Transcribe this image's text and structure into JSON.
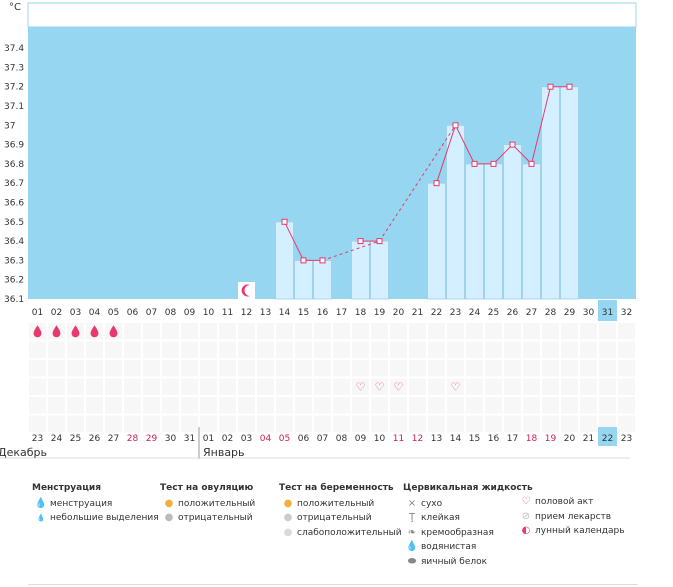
{
  "chart_data": {
    "type": "bar",
    "unit": "°C",
    "ylim": [
      36.1,
      37.5
    ],
    "y_ticks": [
      "37.4",
      "37.3",
      "37.2",
      "37.1",
      "37",
      "36.9",
      "36.8",
      "36.7",
      "36.6",
      "36.5",
      "36.4",
      "36.3",
      "36.2",
      "36.1"
    ],
    "day_labels": [
      "01",
      "02",
      "03",
      "04",
      "05",
      "06",
      "07",
      "08",
      "09",
      "10",
      "11",
      "12",
      "13",
      "14",
      "15",
      "16",
      "17",
      "18",
      "19",
      "20",
      "21",
      "22",
      "23",
      "24",
      "25",
      "26",
      "27",
      "28",
      "29",
      "30",
      "31",
      "32"
    ],
    "highlight_day": "31",
    "temperatures": [
      null,
      null,
      null,
      null,
      null,
      null,
      null,
      null,
      null,
      null,
      null,
      null,
      null,
      36.5,
      36.3,
      36.3,
      null,
      36.4,
      36.4,
      null,
      null,
      36.7,
      37.0,
      36.8,
      36.8,
      36.9,
      36.8,
      37.2,
      37.2,
      null,
      null,
      null
    ],
    "interpolated_segments": [
      [
        16,
        17
      ],
      [
        19,
        21
      ]
    ],
    "calendar_dates": [
      "23",
      "24",
      "25",
      "26",
      "27",
      "28",
      "29",
      "30",
      "31",
      "01",
      "02",
      "03",
      "04",
      "05",
      "06",
      "07",
      "08",
      "09",
      "10",
      "11",
      "12",
      "13",
      "14",
      "15",
      "16",
      "17",
      "18",
      "19",
      "20",
      "21",
      "22",
      "23"
    ],
    "weekend_dates": [
      5,
      6,
      12,
      13,
      19,
      20,
      26,
      27
    ],
    "today_index": 30,
    "month_dividers": [
      9
    ],
    "months": [
      "Декабрь",
      "Январь"
    ],
    "menstruation_days": [
      0,
      1,
      2,
      3,
      4
    ],
    "intercourse_days": [
      17,
      18,
      19,
      22
    ],
    "lunar_day": 11,
    "colors": {
      "plot_bg": "#96d6f0",
      "bar_fill": "#d4efff",
      "bar_stroke": "#9ccfe8",
      "line": "#e63a6e",
      "today": "#96d6f0",
      "weekend": "#cc1f4d",
      "grid": "#ececec"
    }
  },
  "legend": {
    "menstruation": {
      "title": "Менструация",
      "items": [
        "менструация",
        "небольшие выделения"
      ]
    },
    "ovulation": {
      "title": "Тест на овуляцию",
      "items": [
        "положительный",
        "отрицательный"
      ]
    },
    "pregnancy": {
      "title": "Тест на беременность",
      "items": [
        "положительный",
        "отрицательный",
        "слабоположительный"
      ]
    },
    "cervical": {
      "title": "Цервикальная жидкость",
      "items": [
        "сухо",
        "клейкая",
        "кремообразная",
        "водянистая",
        "яичный белок"
      ]
    },
    "other": {
      "items": [
        "половой акт",
        "прием лекарств",
        "лунный календарь"
      ]
    }
  }
}
